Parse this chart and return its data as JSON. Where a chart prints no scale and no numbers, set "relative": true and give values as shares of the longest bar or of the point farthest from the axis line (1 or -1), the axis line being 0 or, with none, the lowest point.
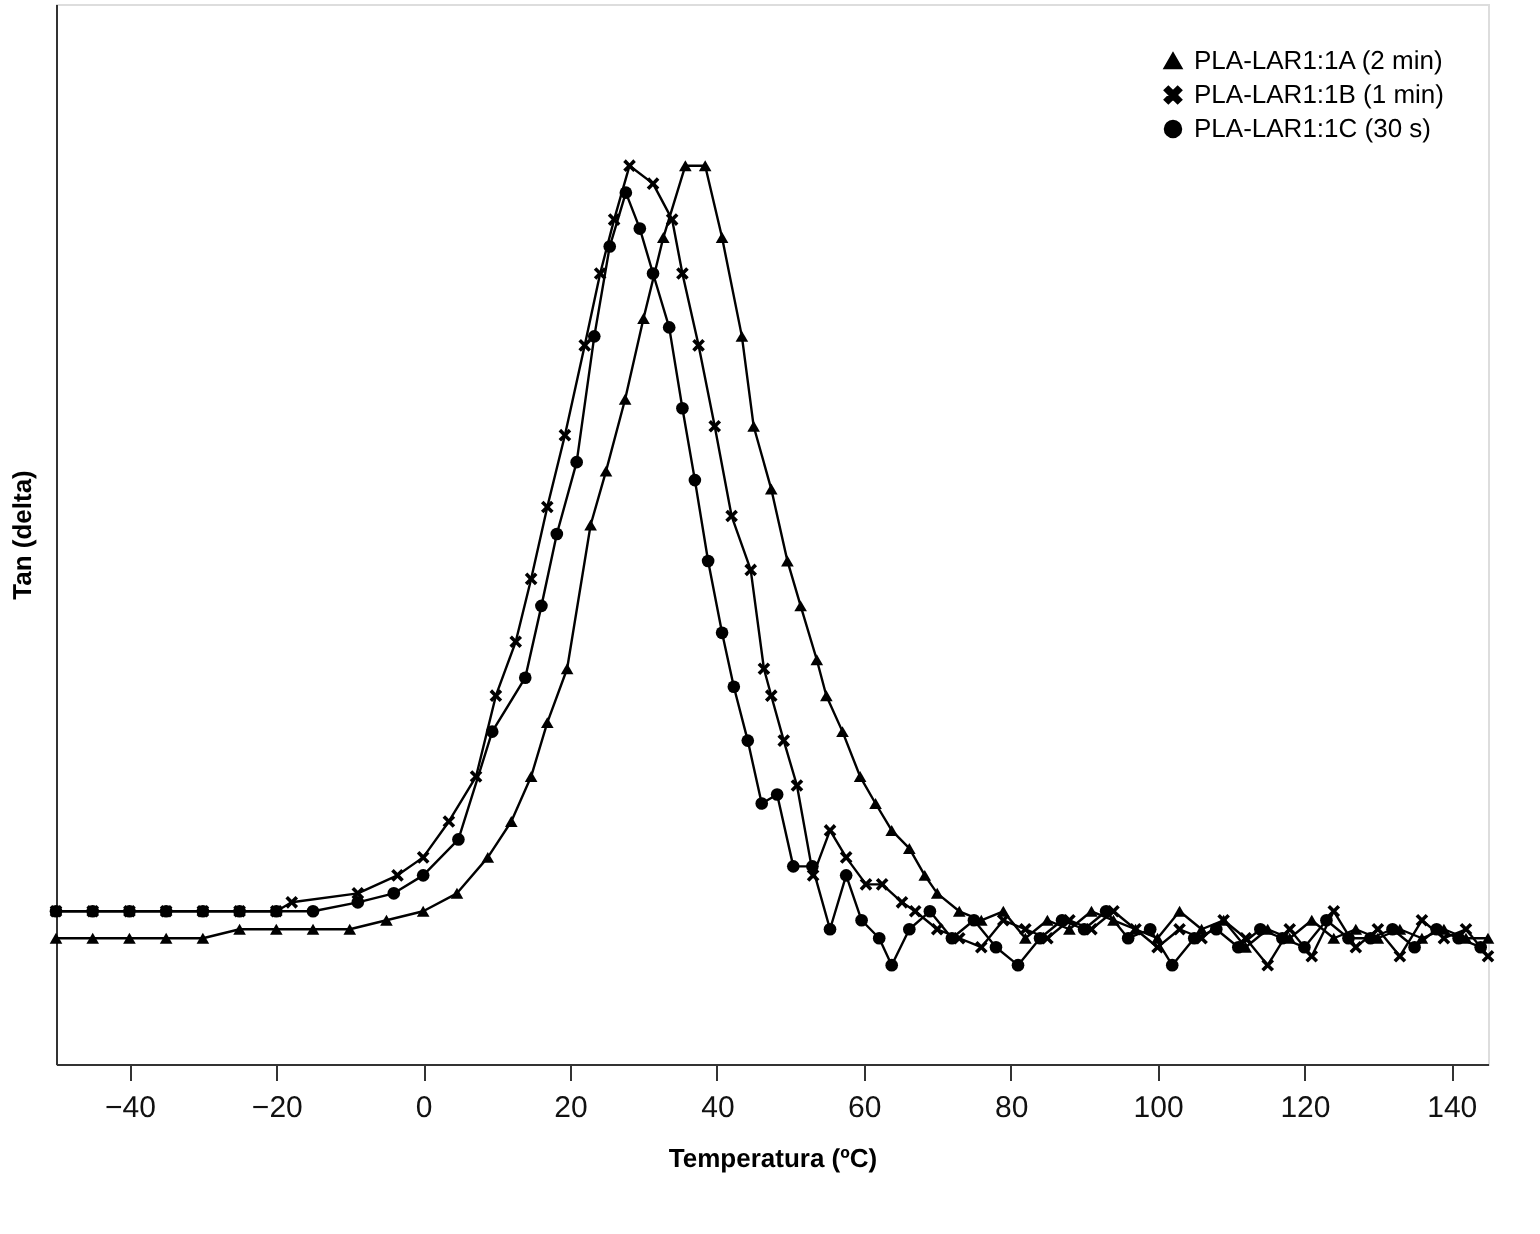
{
  "chart_data": {
    "type": "line",
    "relative": true,
    "xlabel": "Temperatura (ºC)",
    "ylabel": "Tan (delta)",
    "xlim": [
      -50,
      145
    ],
    "xticks": [
      -40,
      -20,
      0,
      20,
      40,
      60,
      80,
      100,
      120,
      140
    ],
    "grid": false,
    "legend": "top right",
    "line_style": "solid",
    "series": [
      {
        "name": "PLA-LAR1:1A (2 min)",
        "color": "#000000",
        "marker": "triangle",
        "x": [
          -50,
          -45,
          -40,
          -35,
          -30,
          -25,
          -20,
          -15,
          -10,
          -5,
          0,
          4.6,
          8.8,
          12,
          14.7,
          16.9,
          19.6,
          22.8,
          24.9,
          27.5,
          30,
          32.7,
          35.7,
          38.4,
          40.7,
          43.4,
          45,
          47.4,
          49.6,
          51.4,
          53.6,
          54.9,
          57.1,
          59.5,
          61.6,
          63.8,
          66.2,
          68.3,
          70,
          73,
          76,
          79,
          82,
          85,
          88,
          91,
          94,
          97,
          100,
          103,
          106,
          109,
          112,
          115,
          118,
          121,
          124,
          127,
          130,
          133,
          136,
          139,
          142,
          145
        ],
        "values": [
          0.14,
          0.14,
          0.14,
          0.14,
          0.14,
          0.15,
          0.15,
          0.15,
          0.15,
          0.16,
          0.17,
          0.19,
          0.23,
          0.27,
          0.32,
          0.38,
          0.44,
          0.6,
          0.66,
          0.74,
          0.83,
          0.92,
          1.0,
          1.0,
          0.92,
          0.81,
          0.71,
          0.64,
          0.56,
          0.51,
          0.45,
          0.41,
          0.37,
          0.32,
          0.29,
          0.26,
          0.24,
          0.21,
          0.19,
          0.17,
          0.16,
          0.17,
          0.14,
          0.16,
          0.15,
          0.17,
          0.16,
          0.15,
          0.14,
          0.17,
          0.15,
          0.16,
          0.13,
          0.15,
          0.14,
          0.16,
          0.14,
          0.15,
          0.14,
          0.15,
          0.14,
          0.15,
          0.14,
          0.14
        ]
      },
      {
        "name": "PLA-LAR1:1B (1 min)",
        "color": "#000000",
        "marker": "cross",
        "x": [
          -50,
          -45,
          -40,
          -35,
          -30,
          -25,
          -20,
          -17.9,
          -8.9,
          -3.5,
          0,
          3.5,
          7.2,
          9.9,
          12.6,
          14.7,
          16.9,
          19.3,
          22,
          24.1,
          26,
          28.1,
          31.3,
          33.9,
          35.3,
          37.5,
          39.7,
          42,
          44.6,
          46.4,
          47.4,
          49.1,
          50.9,
          53.1,
          55.4,
          57.6,
          60.3,
          62.5,
          65.2,
          67,
          70,
          73,
          76,
          79,
          82,
          85,
          88,
          91,
          94,
          97,
          100,
          103,
          106,
          109,
          112,
          115,
          118,
          121,
          124,
          127,
          130,
          133,
          136,
          139,
          142,
          145
        ],
        "values": [
          0.17,
          0.17,
          0.17,
          0.17,
          0.17,
          0.17,
          0.17,
          0.18,
          0.19,
          0.21,
          0.23,
          0.27,
          0.32,
          0.41,
          0.47,
          0.54,
          0.62,
          0.7,
          0.8,
          0.88,
          0.94,
          1.0,
          0.98,
          0.94,
          0.88,
          0.8,
          0.71,
          0.61,
          0.55,
          0.44,
          0.41,
          0.36,
          0.31,
          0.21,
          0.26,
          0.23,
          0.2,
          0.2,
          0.18,
          0.17,
          0.15,
          0.14,
          0.13,
          0.16,
          0.15,
          0.14,
          0.16,
          0.15,
          0.17,
          0.15,
          0.13,
          0.15,
          0.14,
          0.16,
          0.14,
          0.11,
          0.15,
          0.12,
          0.17,
          0.13,
          0.15,
          0.12,
          0.16,
          0.14,
          0.15,
          0.12
        ]
      },
      {
        "name": "PLA-LAR1:1C (30 s)",
        "color": "#000000",
        "marker": "circle",
        "x": [
          -50,
          -45,
          -40,
          -35,
          -30,
          -25,
          -20,
          -15,
          -8.9,
          -4,
          0,
          4.8,
          9.4,
          13.9,
          16.1,
          18.2,
          20.9,
          23.3,
          25.4,
          27.6,
          29.5,
          31.3,
          33.5,
          35.3,
          37,
          38.8,
          40.7,
          42.3,
          44.2,
          46.1,
          48.2,
          50.4,
          53,
          55.4,
          57.6,
          59.7,
          62.1,
          63.8,
          66.2,
          69,
          72,
          75,
          78,
          81,
          84,
          87,
          90,
          93,
          96,
          99,
          102,
          105,
          108,
          111,
          114,
          117,
          120,
          123,
          126,
          129,
          132,
          135,
          138,
          141,
          144
        ],
        "values": [
          0.17,
          0.17,
          0.17,
          0.17,
          0.17,
          0.17,
          0.17,
          0.17,
          0.18,
          0.19,
          0.21,
          0.25,
          0.37,
          0.43,
          0.51,
          0.59,
          0.67,
          0.81,
          0.91,
          0.97,
          0.93,
          0.88,
          0.82,
          0.73,
          0.65,
          0.56,
          0.48,
          0.42,
          0.36,
          0.29,
          0.3,
          0.22,
          0.22,
          0.15,
          0.21,
          0.16,
          0.14,
          0.11,
          0.15,
          0.17,
          0.14,
          0.16,
          0.13,
          0.11,
          0.14,
          0.16,
          0.15,
          0.17,
          0.14,
          0.15,
          0.11,
          0.14,
          0.15,
          0.13,
          0.15,
          0.14,
          0.13,
          0.16,
          0.14,
          0.14,
          0.15,
          0.13,
          0.15,
          0.14,
          0.13
        ]
      }
    ]
  }
}
